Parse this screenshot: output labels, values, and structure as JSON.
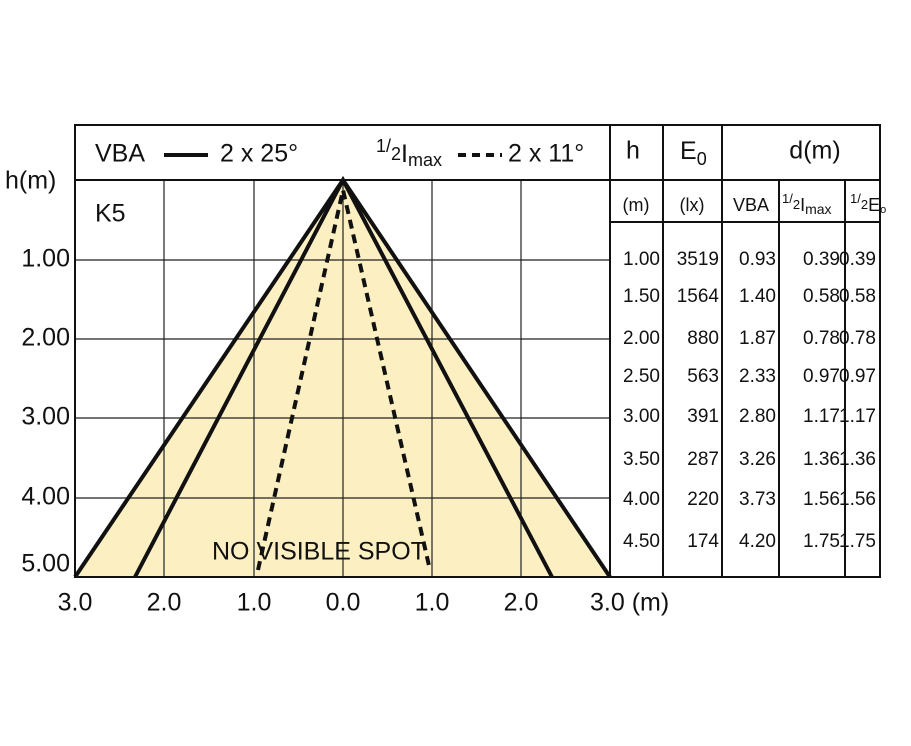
{
  "legend": {
    "vba": {
      "label": "VBA",
      "angle": "2 x 25°"
    },
    "half_imax": {
      "num": "1",
      "den": "2",
      "sym": "I",
      "sub": "max",
      "angle": "2 x 11°"
    }
  },
  "diagram": {
    "model": "K5",
    "h_axis_label": "h(m)",
    "h_ticks": [
      "1.00",
      "2.00",
      "3.00",
      "4.00",
      "5.00"
    ],
    "d_ticks": [
      "3.0",
      "2.0",
      "1.0",
      "0.0",
      "1.0",
      "2.0",
      "3.0 (m)"
    ],
    "note": "NO VISIBLE SPOT"
  },
  "table": {
    "headers": {
      "h": "h",
      "e0": {
        "sym": "E",
        "sub": "0"
      },
      "d": "d(m)"
    },
    "subheaders": {
      "h_unit": "(m)",
      "e0_unit": "(lx)",
      "vba": "VBA",
      "half_imax": {
        "num": "1",
        "den": "2",
        "sym": "I",
        "sub": "max"
      },
      "half_e0": {
        "num": "1",
        "den": "2",
        "sym": "E",
        "sub": "o"
      }
    },
    "rows": [
      [
        "1.00",
        "3519",
        "0.93",
        "0.39",
        "0.39"
      ],
      [
        "1.50",
        "1564",
        "1.40",
        "0.58",
        "0.58"
      ],
      [
        "2.00",
        "880",
        "1.87",
        "0.78",
        "0.78"
      ],
      [
        "2.50",
        "563",
        "2.33",
        "0.97",
        "0.97"
      ],
      [
        "3.00",
        "391",
        "2.80",
        "1.17",
        "1.17"
      ],
      [
        "3.50",
        "287",
        "3.26",
        "1.36",
        "1.36"
      ],
      [
        "4.00",
        "220",
        "3.73",
        "1.56",
        "1.56"
      ],
      [
        "4.50",
        "174",
        "4.20",
        "1.75",
        "1.75"
      ]
    ]
  }
}
